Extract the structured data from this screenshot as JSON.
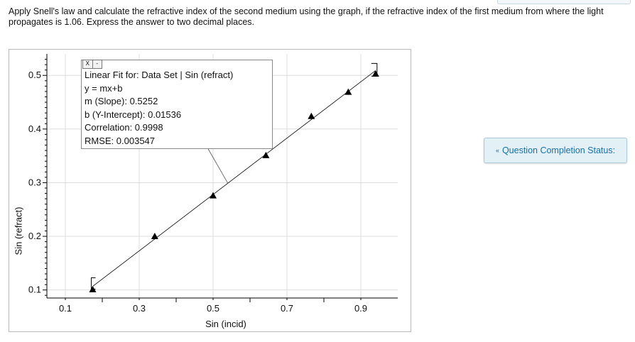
{
  "question": {
    "text": "Apply Snell's law and calculate the refractive index of the second medium using the graph, if the refractive index of the first medium from where the light propagates is 1.06.  Express the answer to two decimal places."
  },
  "status": {
    "label": "Question Completion Status:",
    "icon": "chevron-down-icon"
  },
  "fit_box": {
    "controls": [
      "X",
      "-"
    ],
    "title": "Linear Fit for:  Data Set | Sin (refract)",
    "equation": "y = mx+b",
    "slope": "m (Slope): 0.5252",
    "intercept": "b (Y-Intercept): 0.01536",
    "correlation": "Correlation: 0.9998",
    "rmse": "RMSE: 0.003547"
  },
  "chart_data": {
    "type": "scatter",
    "xlabel": "Sin (incid)",
    "ylabel": "Sin (refract)",
    "xlim": [
      0.05,
      1.0
    ],
    "ylim": [
      0.085,
      0.54
    ],
    "xticks": [
      0.1,
      0.3,
      0.5,
      0.7,
      0.9
    ],
    "xtick_labels": [
      "0.1",
      "0.3",
      "0.5",
      "0.7",
      "0.9"
    ],
    "yticks": [
      0.1,
      0.2,
      0.3,
      0.4,
      0.5
    ],
    "ytick_labels": [
      "0.1",
      "0.2",
      "0.3",
      "0.4",
      "0.5"
    ],
    "grid": true,
    "series": [
      {
        "marker": "triangle",
        "x": [
          0.174,
          0.342,
          0.5,
          0.643,
          0.766,
          0.866,
          0.94
        ],
        "y": [
          0.101,
          0.2,
          0.276,
          0.351,
          0.424,
          0.469,
          0.503
        ]
      }
    ],
    "fit_line": {
      "slope": 0.5252,
      "intercept": 0.01536,
      "x_range": [
        0.174,
        0.94
      ]
    },
    "colors": {
      "grid": "#dddddd",
      "axis": "#000000",
      "marker": "#000000",
      "line": "#000000"
    }
  }
}
